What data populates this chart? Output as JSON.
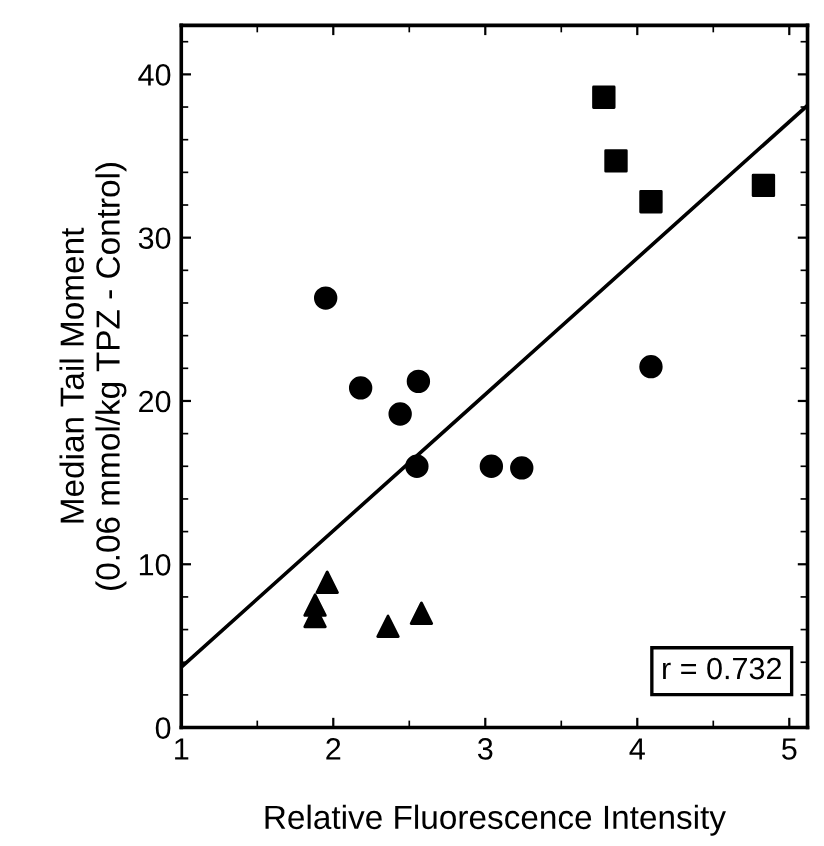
{
  "chart_data": {
    "type": "scatter",
    "xlabel": "Relative Fluorescence Intensity",
    "ylabel": "Median Tail Moment\n(0.06 mmol/kg TPZ - Control)",
    "xlim": [
      1,
      5.12
    ],
    "ylim": [
      0,
      43
    ],
    "xticks": [
      1,
      2,
      3,
      4,
      5
    ],
    "yticks": [
      0,
      10,
      20,
      30,
      40
    ],
    "grid": false,
    "legend": false,
    "series": [
      {
        "color": "#000000",
        "marker": "square",
        "x": [
          3.78,
          3.86,
          4.09,
          4.83
        ],
        "values": [
          38.6,
          34.7,
          32.2,
          33.2
        ]
      },
      {
        "color": "#000000",
        "marker": "circle",
        "x": [
          1.95,
          2.18,
          2.56,
          2.44,
          2.55,
          3.04,
          3.24,
          4.09
        ],
        "values": [
          26.3,
          20.8,
          21.2,
          19.2,
          16.0,
          16.0,
          15.9,
          22.1
        ]
      },
      {
        "color": "#000000",
        "marker": "triangle",
        "x": [
          1.96,
          1.88,
          1.88,
          2.36,
          2.58
        ],
        "values": [
          8.9,
          7.5,
          6.8,
          6.2,
          7.0
        ]
      },
      {
        "type": "line",
        "color": "#000000",
        "marker": "none",
        "line_style": "solid",
        "x": [
          1,
          5.12
        ],
        "values": [
          3.7,
          38.1
        ]
      }
    ],
    "annotations": [
      "r = 0.732"
    ]
  }
}
